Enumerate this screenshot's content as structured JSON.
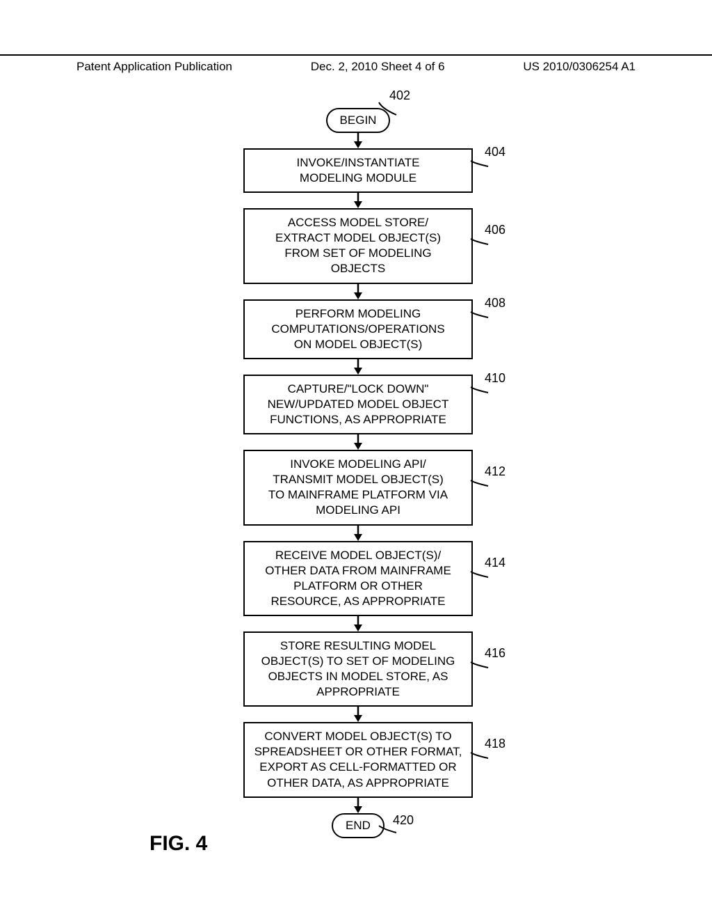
{
  "header": {
    "left": "Patent Application Publication",
    "mid": "Dec. 2, 2010   Sheet 4 of 6",
    "right": "US 2010/0306254 A1"
  },
  "figure_label": "FIG. 4",
  "flow": {
    "begin": {
      "label": "BEGIN",
      "ref": "402"
    },
    "end": {
      "label": "END",
      "ref": "420"
    },
    "steps": [
      {
        "ref": "404",
        "text": "INVOKE/INSTANTIATE\nMODELING MODULE"
      },
      {
        "ref": "406",
        "text": "ACCESS MODEL STORE/\nEXTRACT MODEL OBJECT(S)\nFROM SET OF MODELING\nOBJECTS"
      },
      {
        "ref": "408",
        "text": "PERFORM MODELING\nCOMPUTATIONS/OPERATIONS\nON MODEL OBJECT(S)"
      },
      {
        "ref": "410",
        "text": "CAPTURE/\"LOCK DOWN\"\nNEW/UPDATED MODEL OBJECT\nFUNCTIONS, AS APPROPRIATE"
      },
      {
        "ref": "412",
        "text": "INVOKE MODELING API/\nTRANSMIT MODEL OBJECT(S)\nTO MAINFRAME PLATFORM VIA\nMODELING API"
      },
      {
        "ref": "414",
        "text": "RECEIVE MODEL OBJECT(S)/\nOTHER DATA FROM MAINFRAME\nPLATFORM OR OTHER\nRESOURCE, AS APPROPRIATE"
      },
      {
        "ref": "416",
        "text": "STORE RESULTING MODEL\nOBJECT(S) TO SET OF MODELING\nOBJECTS IN MODEL STORE, AS\nAPPROPRIATE"
      },
      {
        "ref": "418",
        "text": "CONVERT MODEL OBJECT(S) TO\nSPREADSHEET OR OTHER FORMAT,\nEXPORT AS CELL-FORMATTED OR\nOTHER DATA, AS APPROPRIATE"
      }
    ]
  },
  "style": {
    "box_border": "#000000",
    "bg": "#ffffff",
    "font_body": 17,
    "arrow_color": "#000000"
  }
}
